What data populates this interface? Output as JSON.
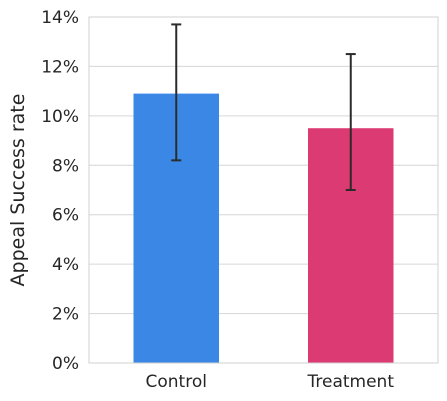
{
  "chart_data": {
    "type": "bar",
    "title": "",
    "xlabel": "",
    "ylabel": "Appeal Success rate",
    "categories": [
      "Control",
      "Treatment"
    ],
    "values": [
      0.109,
      0.095
    ],
    "error_low": [
      0.082,
      0.07
    ],
    "error_high": [
      0.137,
      0.125
    ],
    "colors": [
      "#3a87e6",
      "#dc3a73"
    ],
    "ylim": [
      0,
      0.14
    ],
    "yticks": [
      0,
      0.02,
      0.04,
      0.06,
      0.08,
      0.1,
      0.12,
      0.14
    ],
    "ytick_labels": [
      "0%",
      "2%",
      "4%",
      "6%",
      "8%",
      "10%",
      "12%",
      "14%"
    ],
    "grid": true,
    "legend": "none"
  }
}
